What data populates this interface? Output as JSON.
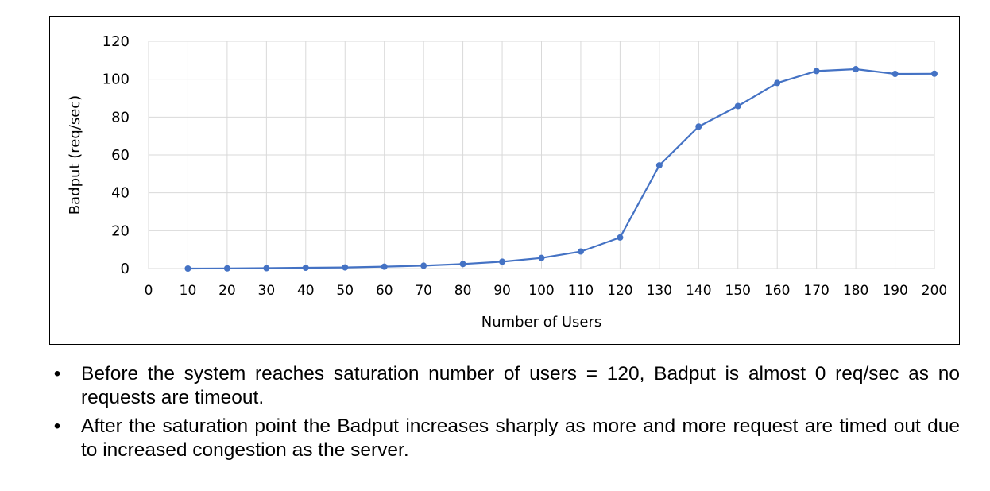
{
  "chart_data": {
    "type": "line",
    "title": "",
    "xlabel": "Number of Users",
    "ylabel": "Badput (req/sec)",
    "x_ticks": [
      "0",
      "10",
      "20",
      "30",
      "40",
      "50",
      "60",
      "70",
      "80",
      "90",
      "100",
      "110",
      "120",
      "130",
      "140",
      "150",
      "160",
      "170",
      "180",
      "190",
      "200"
    ],
    "y_ticks": [
      "0",
      "20",
      "40",
      "60",
      "80",
      "100",
      "120"
    ],
    "xlim": [
      0,
      200
    ],
    "ylim": [
      0,
      120
    ],
    "grid": true,
    "legend": "none",
    "series": [
      {
        "color": "#4472C4",
        "x": [
          10,
          20,
          30,
          40,
          50,
          60,
          70,
          80,
          90,
          100,
          110,
          120,
          130,
          140,
          150,
          160,
          170,
          180,
          190,
          200
        ],
        "y": [
          0,
          0.1,
          0.2,
          0.4,
          0.6,
          1.0,
          1.5,
          2.4,
          3.6,
          5.6,
          9.0,
          16.4,
          54.5,
          75.0,
          85.8,
          98.0,
          104.3,
          105.3,
          102.8,
          102.9
        ]
      }
    ]
  },
  "notes": [
    "Before the system reaches saturation number of users = 120, Badput is almost 0 req/sec as no requests are timeout.",
    "After the saturation point the Badput increases sharply as more and more request are timed out due to increased congestion as the server."
  ],
  "bullet_symbol": "•"
}
